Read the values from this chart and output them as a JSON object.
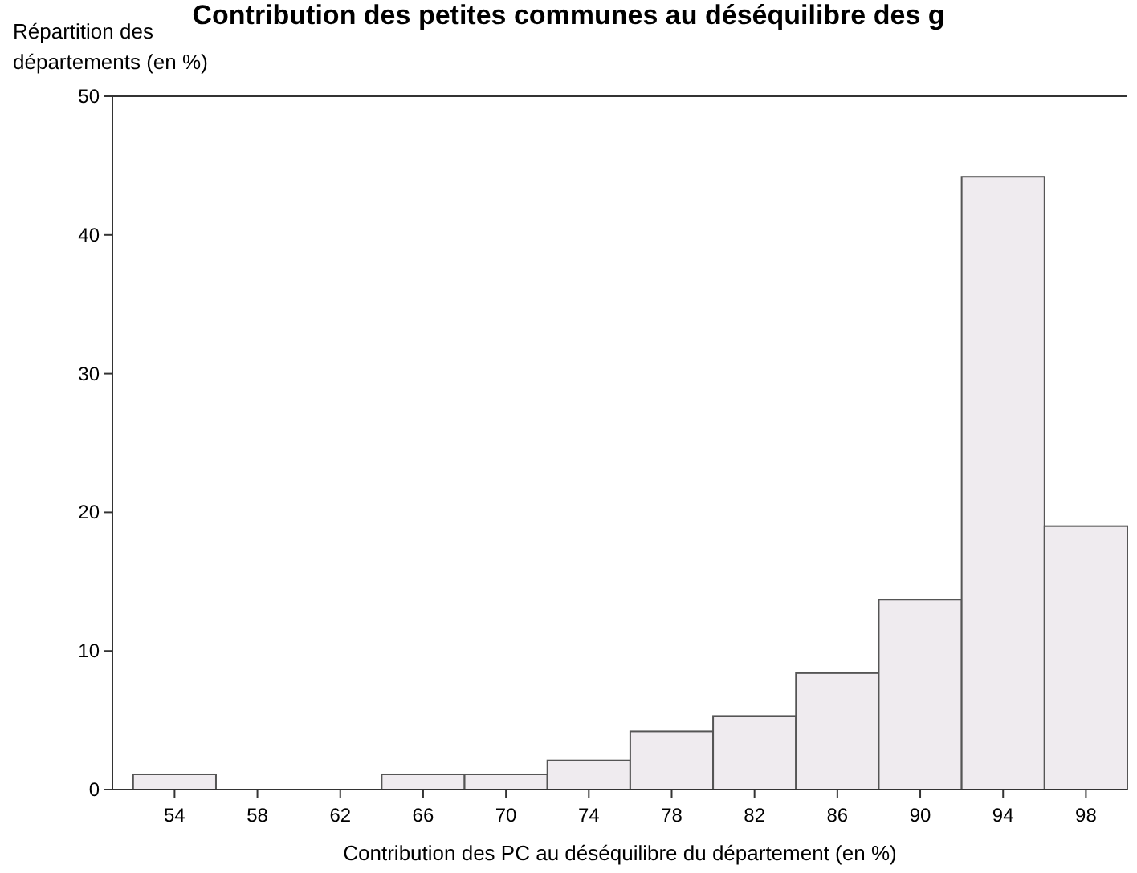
{
  "chart_data": {
    "type": "histogram",
    "title": "Contribution des petites communes au déséquilibre des g",
    "xlabel": "Contribution des PC au déséquilibre du département (en %)",
    "ylabel": "Répartition des\ndépartements (en %)",
    "bins": [
      52,
      56,
      60,
      64,
      68,
      72,
      76,
      80,
      84,
      88,
      92,
      96,
      100
    ],
    "values": [
      1.1,
      0,
      0,
      1.1,
      1.1,
      2.1,
      4.2,
      5.3,
      8.4,
      13.7,
      44.2,
      19
    ],
    "color": "#efebef",
    "xlim": [
      51,
      100
    ],
    "xticks": [
      54,
      58,
      62,
      66,
      70,
      74,
      78,
      82,
      86,
      90,
      94,
      98
    ],
    "ylim": [
      0,
      50
    ],
    "yticks": [
      0,
      10,
      20,
      30,
      40,
      50
    ],
    "grid": false
  }
}
